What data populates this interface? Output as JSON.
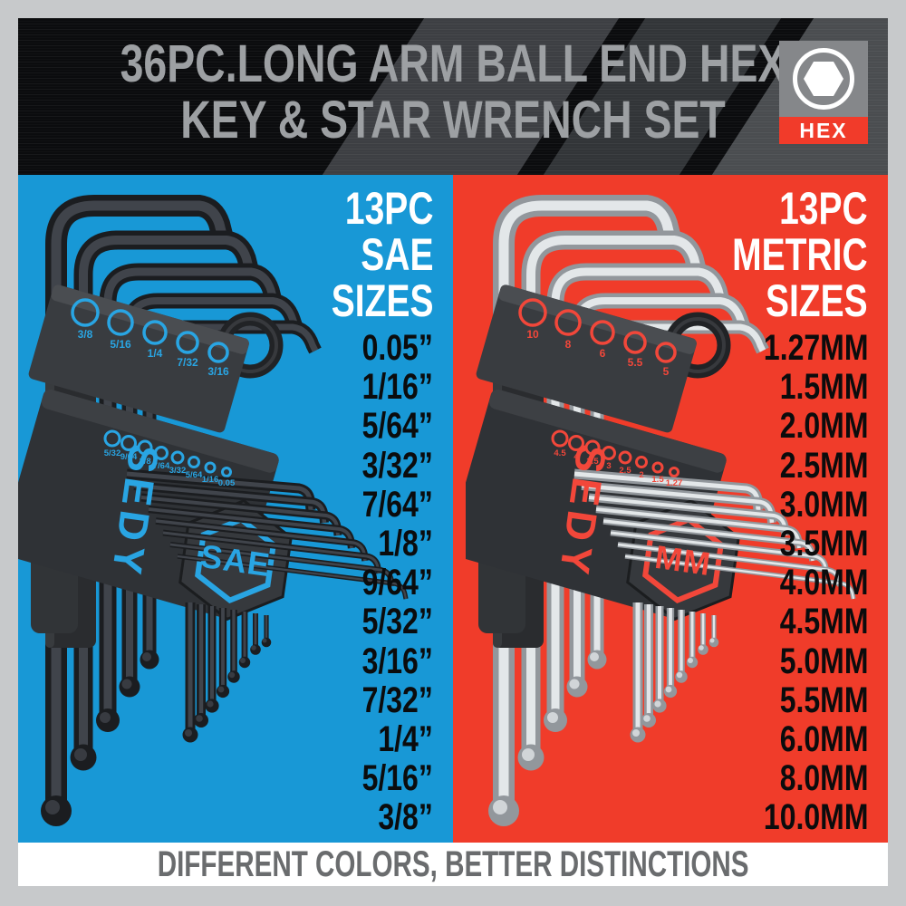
{
  "header": {
    "title_line1": "36PC.LONG ARM BALL END HEX",
    "title_line2": "KEY & STAR WRENCH SET",
    "badge_label": "HEX",
    "badge_icon": "hexagon-in-circle",
    "bg_color": "#0b0c0e",
    "title_color": "#9da0a3",
    "badge_gray": "#85878a",
    "badge_red": "#f13b2a"
  },
  "sae_panel": {
    "bg_color": "#1898d6",
    "accent_color": "#29a5e3",
    "count": "13PC",
    "system": "SAE",
    "sizes_word": "SIZES",
    "sizes": [
      "0.05”",
      "1/16”",
      "5/64”",
      "3/32”",
      "7/64”",
      "1/8”",
      "9/64”",
      "5/32”",
      "3/16”",
      "7/32”",
      "1/4”",
      "5/16”",
      "3/8”"
    ],
    "brand": "SEDY",
    "badge": "SAE",
    "holder_hole_labels_large": [
      "3/8",
      "5/16",
      "1/4",
      "7/32",
      "3/16"
    ],
    "holder_hole_labels_small": [
      "5/32",
      "9/64",
      "1/8",
      "7/64",
      "3/32",
      "5/64",
      "1/16",
      "0.05"
    ]
  },
  "metric_panel": {
    "bg_color": "#f03c2a",
    "accent_color": "#f2473a",
    "count": "13PC",
    "system": "METRIC",
    "sizes_word": "SIZES",
    "sizes": [
      "1.27MM",
      "1.5MM",
      "2.0MM",
      "2.5MM",
      "3.0MM",
      "3.5MM",
      "4.0MM",
      "4.5MM",
      "5.0MM",
      "5.5MM",
      "6.0MM",
      "8.0MM",
      "10.0MM"
    ],
    "brand": "SEDY",
    "badge": "MM",
    "holder_hole_labels_large": [
      "10",
      "8",
      "6",
      "5.5",
      "5"
    ],
    "holder_hole_labels_small": [
      "4.5",
      "4",
      "3.5",
      "3",
      "2.5",
      "2",
      "1.5",
      "1.27"
    ]
  },
  "footer": {
    "text": "DIFFERENT COLORS, BETTER DISTINCTIONS",
    "text_color": "#6a6c6e",
    "bg_color": "#ffffff"
  },
  "frame": {
    "border_color": "#c7c9cb"
  }
}
